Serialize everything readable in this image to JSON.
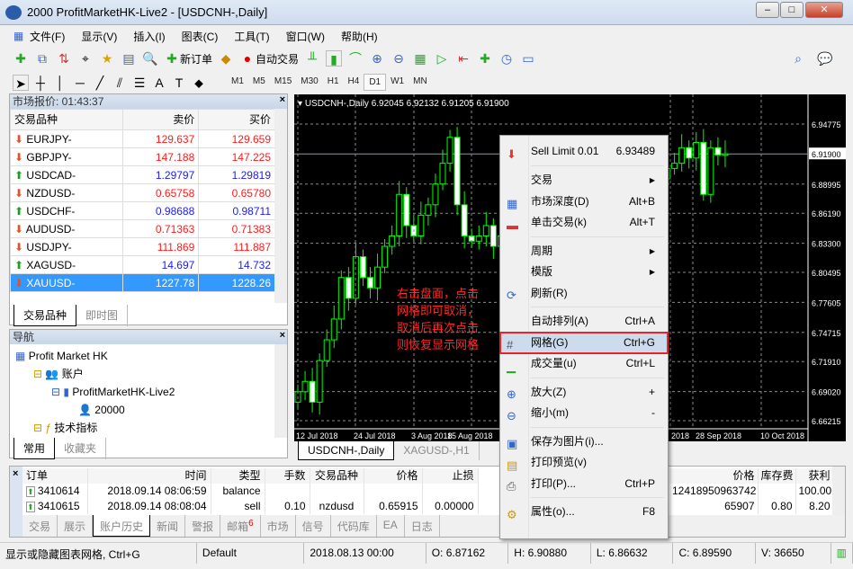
{
  "window": {
    "title": "2000       ProfitMarketHK-Live2 - [USDCNH-,Daily]"
  },
  "menu": [
    "文件(F)",
    "显示(V)",
    "插入(I)",
    "图表(C)",
    "工具(T)",
    "窗口(W)",
    "帮助(H)"
  ],
  "toolbar": {
    "new_order": "新订单",
    "auto_trade": "自动交易"
  },
  "timeframes": [
    "M1",
    "M5",
    "M15",
    "M30",
    "H1",
    "H4",
    "D1",
    "W1",
    "MN"
  ],
  "selected_timeframe": "D1",
  "market_watch": {
    "title": "市场报价: 01:43:37",
    "headers": [
      "交易品种",
      "卖价",
      "买价"
    ],
    "rows": [
      {
        "symbol": "EURJPY-",
        "bid": "129.637",
        "ask": "129.659",
        "dir": "down"
      },
      {
        "symbol": "GBPJPY-",
        "bid": "147.188",
        "ask": "147.225",
        "dir": "down"
      },
      {
        "symbol": "USDCAD-",
        "bid": "1.29797",
        "ask": "1.29819",
        "dir": "up"
      },
      {
        "symbol": "NZDUSD-",
        "bid": "0.65758",
        "ask": "0.65780",
        "dir": "down"
      },
      {
        "symbol": "USDCHF-",
        "bid": "0.98688",
        "ask": "0.98711",
        "dir": "up"
      },
      {
        "symbol": "AUDUSD-",
        "bid": "0.71363",
        "ask": "0.71383",
        "dir": "down"
      },
      {
        "symbol": "USDJPY-",
        "bid": "111.869",
        "ask": "111.887",
        "dir": "down"
      },
      {
        "symbol": "XAGUSD-",
        "bid": "14.697",
        "ask": "14.732",
        "dir": "up"
      },
      {
        "symbol": "XAUUSD-",
        "bid": "1227.78",
        "ask": "1228.26",
        "dir": "down",
        "selected": true
      }
    ],
    "tabs": [
      "交易品种",
      "即时图"
    ]
  },
  "navigator": {
    "title": "导航",
    "tree": [
      "Profit Market HK",
      "账户",
      "ProfitMarketHK-Live2",
      "20000",
      "技术指标"
    ],
    "tabs": [
      "常用",
      "收藏夹"
    ]
  },
  "chart": {
    "header": "USDCNH-,Daily  6.92045 6.92132 6.91205 6.91900",
    "current_price": "6.91900",
    "price_labels": [
      "6.94775",
      "6.91900",
      "6.88995",
      "6.86190",
      "6.83300",
      "6.80495",
      "6.77605",
      "6.74715",
      "6.71910",
      "6.69020",
      "6.66215"
    ],
    "price_values": [
      6.94775,
      6.919,
      6.88995,
      6.8619,
      6.833,
      6.80495,
      6.77605,
      6.74715,
      6.7191,
      6.6902,
      6.66215
    ],
    "date_labels": [
      "12 Jul 2018",
      "24 Jul 2018",
      "3 Aug 2018",
      "15 Aug 2018",
      "2018",
      "28 Sep 2018",
      "10 Oct 2018"
    ],
    "closes": [
      6.69,
      6.7,
      6.68,
      6.72,
      6.74,
      6.76,
      6.8,
      6.78,
      6.82,
      6.8,
      6.79,
      6.81,
      6.83,
      6.84,
      6.88,
      6.85,
      6.84,
      6.86,
      6.87,
      6.89,
      6.91,
      6.935,
      6.87,
      6.84,
      6.835,
      6.84,
      6.85,
      6.83,
      6.84,
      6.85,
      6.86,
      6.84,
      6.85,
      6.86,
      6.85,
      6.84,
      6.83,
      6.84,
      6.85,
      6.86,
      6.86,
      6.87,
      6.87,
      6.88,
      6.88,
      6.89,
      6.89,
      6.885,
      6.9,
      6.9,
      6.895,
      6.905,
      6.91,
      6.925,
      6.915,
      6.93,
      6.88,
      6.925,
      6.918,
      6.919
    ],
    "annotation": [
      "右击盘面，点击",
      "网格即可取消，",
      "取消后再次点击",
      "则恢复显示网格"
    ],
    "colors": {
      "candle": "#00ff00",
      "grid": "#8a8a8a",
      "annotation": "#ff2a2a"
    },
    "tabs": [
      "USDCNH-,Daily",
      "XAGUSD-,H1"
    ]
  },
  "context_menu": [
    {
      "label": "Sell Limit 0.01",
      "shortcut": "6.93489",
      "icon": "sell-limit-icon"
    },
    {
      "sep": true
    },
    {
      "label": "交易",
      "submenu": true
    },
    {
      "label": "市场深度(D)",
      "shortcut": "Alt+B",
      "icon": "market-depth-icon"
    },
    {
      "label": "单击交易(k)",
      "shortcut": "Alt+T",
      "icon": "one-click-icon"
    },
    {
      "sep": true
    },
    {
      "label": "周期",
      "submenu": true
    },
    {
      "label": "模版",
      "submenu": true
    },
    {
      "label": "刷新(R)",
      "icon": "refresh-icon"
    },
    {
      "sep": true
    },
    {
      "label": "自动排列(A)",
      "shortcut": "Ctrl+A"
    },
    {
      "label": "网格(G)",
      "shortcut": "Ctrl+G",
      "icon": "grid-icon",
      "highlighted": true
    },
    {
      "label": "成交量(u)",
      "shortcut": "Ctrl+L",
      "icon": "volume-icon"
    },
    {
      "sep": true
    },
    {
      "label": "放大(Z)",
      "shortcut": "+",
      "icon": "zoom-in-icon"
    },
    {
      "label": "缩小(m)",
      "shortcut": "-",
      "icon": "zoom-out-icon"
    },
    {
      "sep": true
    },
    {
      "label": "保存为图片(i)...",
      "icon": "save-image-icon"
    },
    {
      "label": "打印预览(v)",
      "icon": "print-preview-icon"
    },
    {
      "label": "打印(P)...",
      "shortcut": "Ctrl+P",
      "icon": "print-icon"
    },
    {
      "sep": true
    },
    {
      "label": "属性(o)...",
      "shortcut": "F8",
      "icon": "properties-icon"
    }
  ],
  "terminal": {
    "headers": [
      "订单",
      "时间",
      "类型",
      "手数",
      "交易品种",
      "价格",
      "止损"
    ],
    "right_headers": [
      "价格",
      "库存费",
      "获利"
    ],
    "rows": [
      {
        "cells": [
          "3410614",
          "2018.09.14 08:06:59",
          "balance",
          "",
          "",
          "",
          ""
        ],
        "right": [
          "12418950963742",
          "",
          "100.00"
        ]
      },
      {
        "cells": [
          "3410615",
          "2018.09.14 08:08:04",
          "sell",
          "0.10",
          "nzdusd",
          "0.65915",
          "0.00000"
        ],
        "right": [
          "65907",
          "0.80",
          "8.20"
        ]
      }
    ],
    "tabs": [
      "交易",
      "展示",
      "账户历史",
      "新闻",
      "警报",
      "邮箱",
      "市场",
      "信号",
      "代码库",
      "EA",
      "日志"
    ],
    "active_tab": "账户历史",
    "mail_count": "6"
  },
  "status": {
    "hint": "显示或隐藏图表网格, Ctrl+G",
    "profile": "Default",
    "time": "2018.08.13 00:00",
    "open": "O: 6.87162",
    "high": "H: 6.90880",
    "low": "L: 6.86632",
    "close": "C: 6.89590",
    "volume": "V: 36650"
  }
}
